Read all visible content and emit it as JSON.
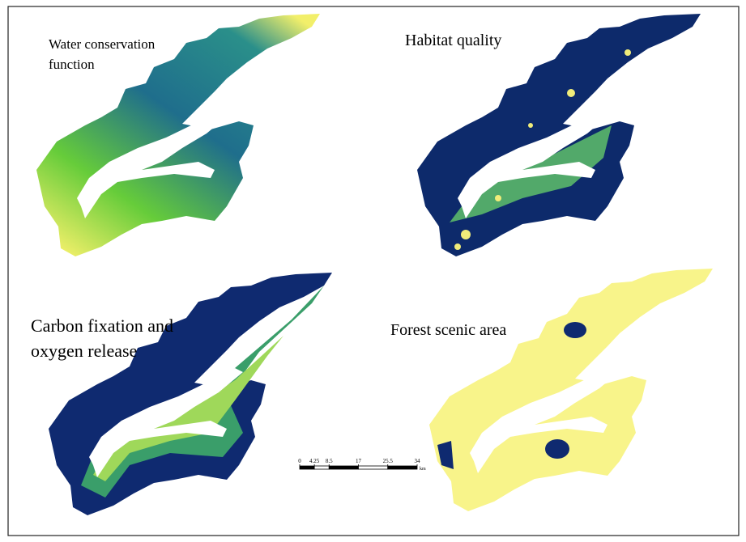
{
  "panels": [
    {
      "title_lines": [
        "Water conservation",
        "function"
      ]
    },
    {
      "title_lines": [
        "Habitat quality"
      ]
    },
    {
      "title_lines": [
        "Carbon fixation and",
        "oxygen release"
      ]
    },
    {
      "title_lines": [
        "Forest scenic area"
      ]
    }
  ],
  "scale_bar": {
    "ticks": [
      0,
      4.25,
      8.5,
      17,
      25.5,
      34
    ],
    "unit": "km"
  }
}
